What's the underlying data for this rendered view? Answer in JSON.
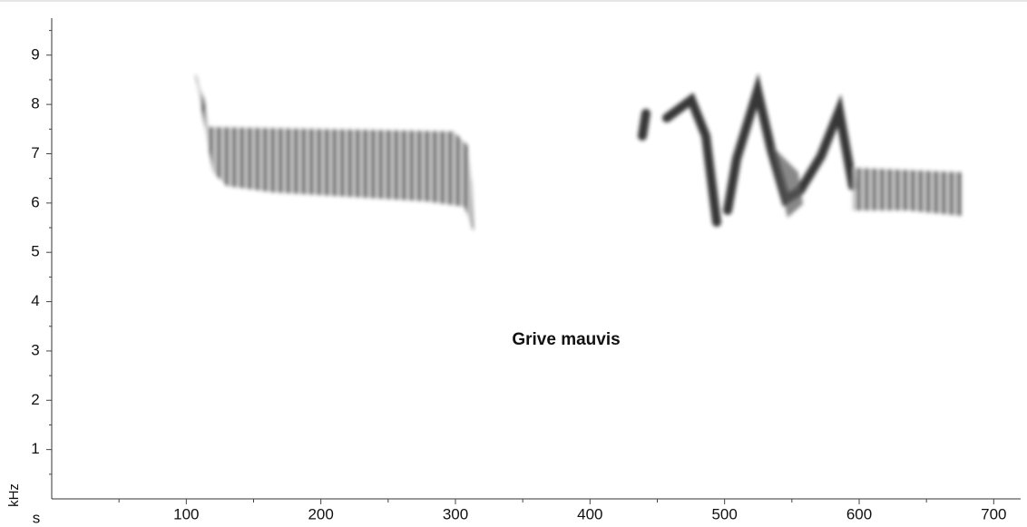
{
  "chart_data": {
    "type": "spectrogram",
    "x_label": "s",
    "y_label": "kHz",
    "annotation": "Grive mauvis",
    "xlim": [
      0,
      720
    ],
    "xticks": [
      100,
      200,
      300,
      400,
      500,
      600,
      700
    ],
    "minor_xticks": [
      50,
      150,
      250,
      350,
      450,
      550,
      650
    ],
    "ylim": [
      0,
      9.75
    ],
    "yticks": [
      1,
      2,
      3,
      4,
      5,
      6,
      7,
      8,
      9
    ],
    "minor_yticks": [
      0.5,
      1.5,
      2.5,
      3.5,
      4.5,
      5.5,
      6.5,
      7.5,
      8.5,
      9.5
    ]
  }
}
